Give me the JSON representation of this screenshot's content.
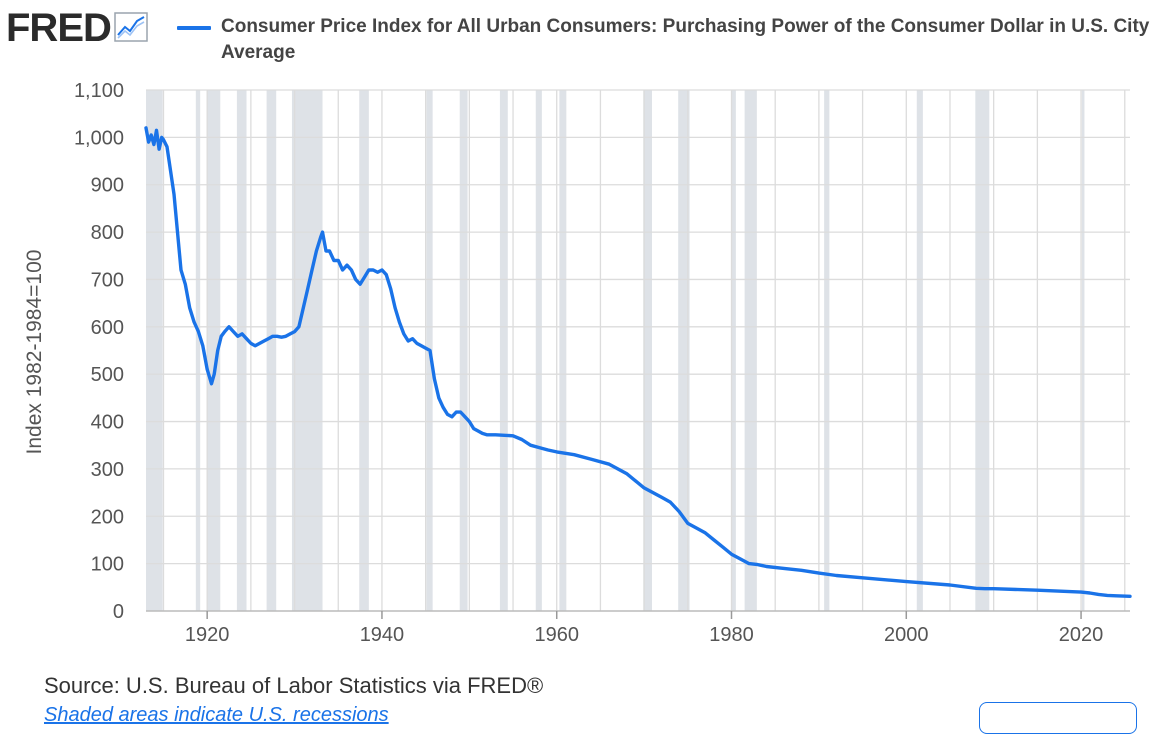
{
  "header": {
    "logo_text": "FRED",
    "logo_icon": "line-chart-icon",
    "title": "Consumer Price Index for All Urban Consumers: Purchasing Power of the Consumer Dollar in U.S. City Average"
  },
  "footer": {
    "source": "Source: U.S. Bureau of Labor Statistics via FRED®",
    "notes_text": "Shaded areas indicate U.S. recessions"
  },
  "colors": {
    "line": "#1a73e8",
    "recession": "#dee2e7",
    "grid": "#dcdcdc",
    "text": "#555555"
  },
  "chart_data": {
    "type": "line",
    "title": "Consumer Price Index for All Urban Consumers: Purchasing Power of the Consumer Dollar in U.S. City Average",
    "ylabel": "Index 1982-1984=100",
    "xlabel": "",
    "xlim": [
      1913,
      2025.6
    ],
    "ylim": [
      0,
      1100
    ],
    "x_ticks": [
      1920,
      1940,
      1960,
      1980,
      2000,
      2020
    ],
    "y_ticks": [
      0,
      100,
      200,
      300,
      400,
      500,
      600,
      700,
      800,
      900,
      1000,
      1100
    ],
    "y_tick_labels": [
      "0",
      "100",
      "200",
      "300",
      "400",
      "500",
      "600",
      "700",
      "800",
      "900",
      "1,000",
      "1,100"
    ],
    "grid": true,
    "recessions": [
      [
        1913.0,
        1914.9
      ],
      [
        1918.7,
        1919.2
      ],
      [
        1920.0,
        1921.5
      ],
      [
        1923.4,
        1924.5
      ],
      [
        1926.8,
        1927.9
      ],
      [
        1929.7,
        1933.2
      ],
      [
        1937.4,
        1938.5
      ],
      [
        1945.1,
        1945.8
      ],
      [
        1948.9,
        1949.8
      ],
      [
        1953.5,
        1954.4
      ],
      [
        1957.6,
        1958.3
      ],
      [
        1960.3,
        1961.1
      ],
      [
        1969.9,
        1970.9
      ],
      [
        1973.9,
        1975.2
      ],
      [
        1980.0,
        1980.5
      ],
      [
        1981.5,
        1982.9
      ],
      [
        1990.6,
        1991.2
      ],
      [
        2001.2,
        2001.9
      ],
      [
        2007.9,
        2009.5
      ],
      [
        2020.1,
        2020.3
      ]
    ],
    "series": [
      {
        "name": "Purchasing Power of the Consumer Dollar",
        "x": [
          1913.0,
          1913.3,
          1913.6,
          1913.9,
          1914.2,
          1914.5,
          1914.8,
          1915.0,
          1915.4,
          1915.8,
          1916.2,
          1916.6,
          1917.0,
          1917.5,
          1918.0,
          1918.5,
          1919.0,
          1919.5,
          1920.0,
          1920.5,
          1920.8,
          1921.2,
          1921.6,
          1922.0,
          1922.5,
          1923.0,
          1923.5,
          1924.0,
          1924.5,
          1925.0,
          1925.5,
          1926.0,
          1926.5,
          1927.0,
          1927.5,
          1928.0,
          1928.5,
          1929.0,
          1929.5,
          1930.0,
          1930.5,
          1931.0,
          1931.5,
          1932.0,
          1932.5,
          1933.0,
          1933.2,
          1933.6,
          1934.0,
          1934.5,
          1935.0,
          1935.5,
          1936.0,
          1936.5,
          1937.0,
          1937.5,
          1938.0,
          1938.5,
          1939.0,
          1939.5,
          1940.0,
          1940.5,
          1941.0,
          1941.5,
          1942.0,
          1942.5,
          1943.0,
          1943.5,
          1944.0,
          1944.5,
          1945.0,
          1945.5,
          1946.0,
          1946.5,
          1947.0,
          1947.5,
          1948.0,
          1948.5,
          1949.0,
          1949.5,
          1950.0,
          1950.5,
          1951.0,
          1951.5,
          1952.0,
          1953.0,
          1954.0,
          1955.0,
          1956.0,
          1957.0,
          1958.0,
          1959.0,
          1960.0,
          1962.0,
          1964.0,
          1966.0,
          1968.0,
          1970.0,
          1972.0,
          1973.0,
          1974.0,
          1975.0,
          1976.0,
          1977.0,
          1978.0,
          1979.0,
          1980.0,
          1981.0,
          1982.0,
          1983.0,
          1984.0,
          1986.0,
          1988.0,
          1990.0,
          1992.0,
          1995.0,
          2000.0,
          2005.0,
          2008.0,
          2009.0,
          2010.0,
          2015.0,
          2020.0,
          2021.0,
          2022.0,
          2023.0,
          2024.0,
          2025.6
        ],
        "values": [
          1020,
          990,
          1005,
          985,
          1015,
          975,
          1000,
          995,
          980,
          930,
          880,
          800,
          720,
          690,
          640,
          610,
          590,
          560,
          510,
          480,
          500,
          550,
          580,
          590,
          600,
          590,
          580,
          585,
          575,
          565,
          560,
          565,
          570,
          575,
          580,
          580,
          578,
          580,
          585,
          590,
          600,
          640,
          680,
          720,
          760,
          790,
          800,
          760,
          760,
          740,
          740,
          720,
          730,
          720,
          700,
          690,
          705,
          720,
          720,
          715,
          720,
          710,
          680,
          640,
          610,
          585,
          570,
          575,
          565,
          560,
          555,
          550,
          490,
          450,
          430,
          415,
          410,
          420,
          420,
          410,
          400,
          385,
          380,
          375,
          372,
          372,
          371,
          370,
          362,
          350,
          345,
          340,
          336,
          330,
          320,
          310,
          290,
          260,
          240,
          230,
          210,
          185,
          175,
          165,
          150,
          135,
          120,
          110,
          100,
          98,
          94,
          90,
          86,
          80,
          75,
          70,
          62,
          55,
          48,
          47,
          47,
          44,
          40,
          38,
          35,
          33,
          32,
          31
        ]
      }
    ]
  }
}
